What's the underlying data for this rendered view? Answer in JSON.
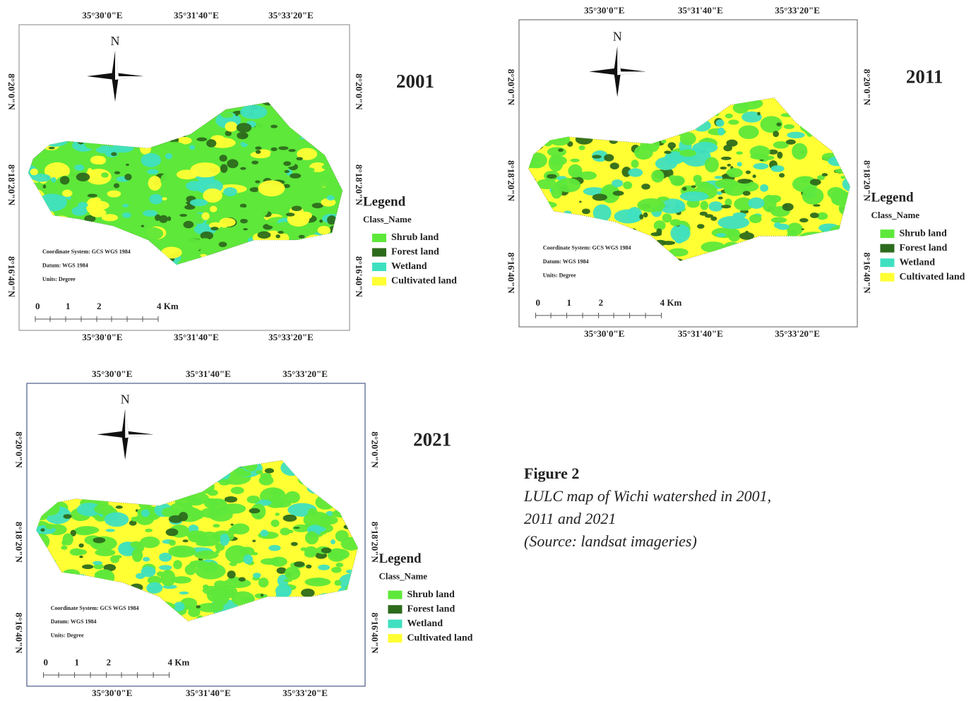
{
  "figure": {
    "maps": [
      {
        "year": "2001",
        "north": "N",
        "top_longitudes": [
          "35°30'0\"E",
          "35°31'40\"E",
          "35°33'20\"E"
        ],
        "bottom_longitudes": [
          "35°30'0\"E",
          "35°31'40\"E",
          "35°33'20\"E"
        ],
        "left_latitudes": [
          "8°20'0\"N",
          "8°18'20\"N",
          "8°16'40\"N"
        ],
        "right_latitudes": [
          "8°20'0\"N",
          "8°18'20\"N",
          "8°16'40\"N"
        ],
        "legend": {
          "title": "Legend",
          "subtitle": "Class_Name",
          "items": [
            {
              "label": "Shrub land",
              "color": "#5ee83a"
            },
            {
              "label": "Forest land",
              "color": "#2d6b1c"
            },
            {
              "label": "Wetland",
              "color": "#3fe0c0"
            },
            {
              "label": "Cultivated land",
              "color": "#ffff33"
            }
          ]
        },
        "notes": [
          "Coordinate System: GCS WGS 1984",
          "Datum: WGS 1984",
          "Units: Degree"
        ],
        "scale_labels": [
          "0",
          "1",
          "2",
          "4 Km"
        ]
      },
      {
        "year": "2011",
        "north": "N",
        "top_longitudes": [
          "35°30'0\"E",
          "35°31'40\"E",
          "35°33'20\"E"
        ],
        "bottom_longitudes": [
          "35°30'0\"E",
          "35°31'40\"E",
          "35°33'20\"E"
        ],
        "left_latitudes": [
          "8°20'0\"N",
          "8°18'20\"N",
          "8°16'40\"N"
        ],
        "right_latitudes": [
          "8°20'0\"N",
          "8°18'20\"N",
          "8°16'40\"N"
        ],
        "legend": {
          "title": "Legend",
          "subtitle": "Class_Name",
          "items": [
            {
              "label": "Shrub land",
              "color": "#5ee83a"
            },
            {
              "label": "Forest land",
              "color": "#2d6b1c"
            },
            {
              "label": "Wetland",
              "color": "#3fe0c0"
            },
            {
              "label": "Cultivated land",
              "color": "#ffff33"
            }
          ]
        },
        "notes": [
          "Coordinate System: GCS WGS 1984",
          "Datum: WGS 1984",
          "Units: Degree"
        ],
        "scale_labels": [
          "0",
          "1",
          "2",
          "4 Km"
        ]
      },
      {
        "year": "2021",
        "north": "N",
        "top_longitudes": [
          "35°30'0\"E",
          "35°31'40\"E",
          "35°33'20\"E"
        ],
        "bottom_longitudes": [
          "35°30'0\"E",
          "35°31'40\"E",
          "35°33'20\"E"
        ],
        "left_latitudes": [
          "8°20'0\"N",
          "8°18'20\"N",
          "8°16'40\"N"
        ],
        "right_latitudes": [
          "8°20'0\"N",
          "8°18'20\"N",
          "8°16'40\"N"
        ],
        "legend": {
          "title": "Legend",
          "subtitle": "Class_Name",
          "items": [
            {
              "label": "Shrub land",
              "color": "#5ee83a"
            },
            {
              "label": "Forest land",
              "color": "#2d6b1c"
            },
            {
              "label": "Wetland",
              "color": "#3fe0c0"
            },
            {
              "label": "Cultivated land",
              "color": "#ffff33"
            }
          ]
        },
        "notes": [
          "Coordinate System: GCS WGS 1984",
          "Datum: WGS 1984",
          "Units: Degree"
        ],
        "scale_labels": [
          "0",
          "1",
          "2",
          "4 Km"
        ]
      }
    ],
    "caption": {
      "label": "Figure 2",
      "lines": [
        "LULC map of Wichi watershed in 2001,",
        "2011 and 2021",
        "(Source: landsat imageries)"
      ]
    }
  }
}
